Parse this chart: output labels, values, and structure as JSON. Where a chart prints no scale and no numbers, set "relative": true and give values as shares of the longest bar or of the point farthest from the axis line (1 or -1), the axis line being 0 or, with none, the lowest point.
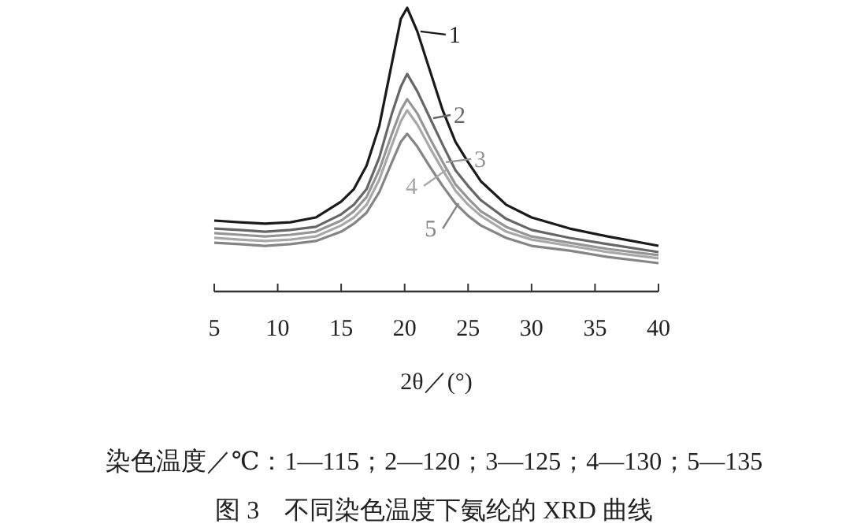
{
  "chart_data": {
    "type": "line",
    "relative": true,
    "legend": "top right",
    "title": "图 3　不同染色温度下氨纶的 XRD 曲线",
    "xlabel": "2θ／(°)",
    "annotations": [
      "染色温度／℃：1—115；2—120；3—125；4—130；5—135"
    ],
    "x": [
      5,
      7,
      9,
      11,
      13,
      15,
      16,
      17,
      18,
      19,
      19.7,
      20.2,
      21,
      22,
      23,
      24,
      25,
      26,
      28,
      30,
      33,
      36,
      40
    ],
    "xlim": [
      5,
      40
    ],
    "xticks": [
      5,
      10,
      15,
      20,
      25,
      30,
      35,
      40
    ],
    "series": [
      {
        "name": "1",
        "color": "#1a1a1a",
        "values": [
          0.25,
          0.244,
          0.239,
          0.244,
          0.261,
          0.317,
          0.361,
          0.444,
          0.583,
          0.806,
          0.961,
          1.0,
          0.917,
          0.778,
          0.639,
          0.528,
          0.456,
          0.389,
          0.306,
          0.261,
          0.222,
          0.194,
          0.161
        ]
      },
      {
        "name": "2",
        "color": "#666666",
        "values": [
          0.222,
          0.217,
          0.211,
          0.217,
          0.228,
          0.272,
          0.306,
          0.361,
          0.472,
          0.628,
          0.722,
          0.767,
          0.706,
          0.611,
          0.517,
          0.428,
          0.372,
          0.322,
          0.256,
          0.217,
          0.189,
          0.167,
          0.139
        ]
      },
      {
        "name": "3",
        "color": "#959595",
        "values": [
          0.206,
          0.2,
          0.194,
          0.2,
          0.211,
          0.25,
          0.283,
          0.333,
          0.428,
          0.556,
          0.639,
          0.678,
          0.628,
          0.539,
          0.456,
          0.378,
          0.328,
          0.283,
          0.228,
          0.194,
          0.172,
          0.15,
          0.128
        ]
      },
      {
        "name": "4",
        "color": "#a8a8a8",
        "values": [
          0.189,
          0.183,
          0.178,
          0.183,
          0.194,
          0.233,
          0.261,
          0.306,
          0.394,
          0.517,
          0.6,
          0.639,
          0.589,
          0.506,
          0.428,
          0.356,
          0.306,
          0.267,
          0.211,
          0.183,
          0.161,
          0.139,
          0.117
        ]
      },
      {
        "name": "5",
        "color": "#858585",
        "values": [
          0.172,
          0.167,
          0.161,
          0.167,
          0.178,
          0.211,
          0.239,
          0.278,
          0.35,
          0.456,
          0.528,
          0.556,
          0.511,
          0.439,
          0.372,
          0.311,
          0.267,
          0.233,
          0.189,
          0.161,
          0.144,
          0.122,
          0.1
        ]
      }
    ]
  }
}
